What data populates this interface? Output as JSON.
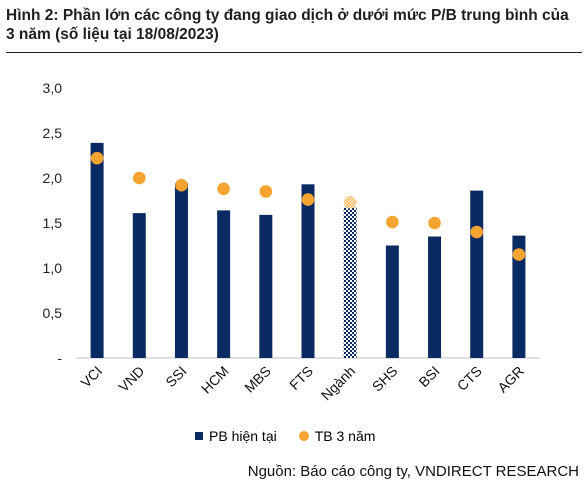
{
  "title": "Hình 2: Phần lớn các công ty đang giao dịch ở dưới mức P/B trung bình của 3 năm (số liệu tại 18/08/2023)",
  "source": "Nguồn: Báo cáo công ty, VNDIRECT RESEARCH",
  "colors": {
    "bar": "#0a2a63",
    "dot": "#f5a431"
  },
  "chart_data": {
    "type": "bar",
    "title": "",
    "xlabel": "",
    "ylabel": "",
    "ylim": [
      0,
      3
    ],
    "yticks": [
      "-",
      "0,5",
      "1,0",
      "1,5",
      "2,0",
      "2,5",
      "3,0"
    ],
    "grid": false,
    "legend_position": "bottom",
    "categories": [
      "VCI",
      "VND",
      "SSI",
      "HCM",
      "MBS",
      "FTS",
      "Ngành",
      "SHS",
      "BSI",
      "CTS",
      "AGR"
    ],
    "highlight_category": "Ngành",
    "series": [
      {
        "name": "PB hiện tại",
        "type": "bar",
        "values": [
          2.39,
          1.61,
          1.94,
          1.64,
          1.59,
          1.93,
          1.67,
          1.25,
          1.35,
          1.86,
          1.36
        ]
      },
      {
        "name": "TB 3 năm",
        "type": "scatter",
        "values": [
          2.22,
          2.0,
          1.92,
          1.88,
          1.85,
          1.76,
          1.73,
          1.51,
          1.5,
          1.4,
          1.15
        ]
      }
    ]
  }
}
